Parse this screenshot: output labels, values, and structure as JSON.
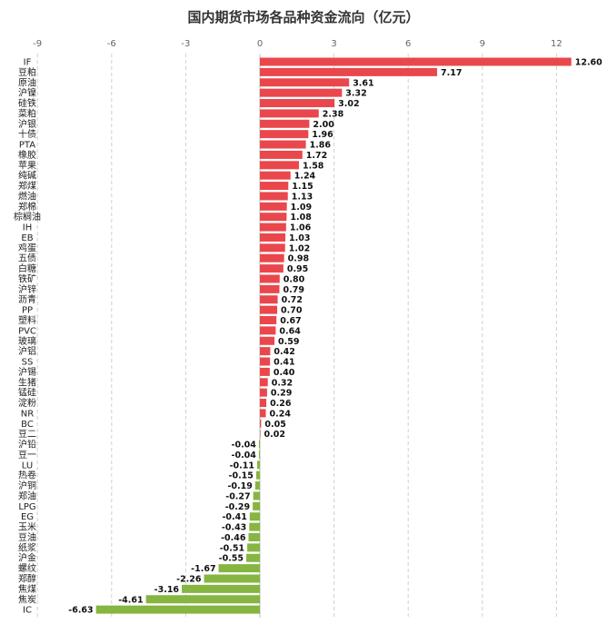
{
  "chart_data": {
    "type": "bar",
    "orientation": "horizontal",
    "title": "国内期货市场各品种资金流向（亿元）",
    "xlim": [
      -9,
      13
    ],
    "ticks": [
      -9,
      -6,
      -3,
      0,
      3,
      6,
      9,
      12
    ],
    "grid": "vertical-dashed",
    "colors": {
      "positive": "#e9474c",
      "negative": "#86b542"
    },
    "categories": [
      "IF",
      "豆粕",
      "原油",
      "沪镍",
      "硅铁",
      "菜粕",
      "沪银",
      "十债",
      "PTA",
      "橡胶",
      "苹果",
      "纯碱",
      "郑煤",
      "燃油",
      "郑棉",
      "棕榈油",
      "IH",
      "EB",
      "鸡蛋",
      "五债",
      "白糖",
      "铁矿",
      "沪锌",
      "沥青",
      "PP",
      "塑料",
      "PVC",
      "玻璃",
      "沪铝",
      "SS",
      "沪锡",
      "生猪",
      "锰硅",
      "淀粉",
      "NR",
      "BC",
      "豆二",
      "沪铅",
      "豆一",
      "LU",
      "热卷",
      "沪铜",
      "郑油",
      "LPG",
      "EG",
      "玉米",
      "豆油",
      "纸浆",
      "沪金",
      "螺纹",
      "郑醇",
      "焦煤",
      "焦炭",
      "IC"
    ],
    "values": [
      12.6,
      7.17,
      3.61,
      3.32,
      3.02,
      2.38,
      2.0,
      1.96,
      1.86,
      1.72,
      1.58,
      1.24,
      1.15,
      1.13,
      1.09,
      1.08,
      1.06,
      1.03,
      1.02,
      0.98,
      0.95,
      0.8,
      0.79,
      0.72,
      0.7,
      0.67,
      0.64,
      0.59,
      0.42,
      0.41,
      0.4,
      0.32,
      0.29,
      0.26,
      0.24,
      0.05,
      0.02,
      -0.04,
      -0.04,
      -0.11,
      -0.15,
      -0.19,
      -0.27,
      -0.29,
      -0.41,
      -0.43,
      -0.46,
      -0.51,
      -0.55,
      -1.67,
      -2.26,
      -3.16,
      -4.61,
      -6.63
    ]
  }
}
